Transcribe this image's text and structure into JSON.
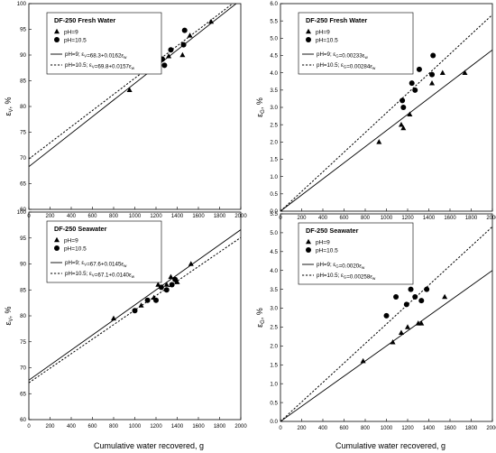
{
  "figure": {
    "xlabel": "Cumulative water recovered, g"
  },
  "chart_data": [
    {
      "type": "scatter",
      "id": "tl",
      "title": "DF-250 Fresh Water",
      "ylabel_sym": "ε",
      "ylabel_sub": "V",
      "ylabel_unit": ", %",
      "xlim": [
        0,
        2000
      ],
      "ylim": [
        60,
        100
      ],
      "xticks": [
        0,
        200,
        400,
        600,
        800,
        1000,
        1200,
        1400,
        1600,
        1800,
        2000
      ],
      "yticks": [
        60,
        65,
        70,
        75,
        80,
        85,
        90,
        95,
        100
      ],
      "legend_position": "top-left",
      "series": [
        {
          "name": "pH=9",
          "marker": "triangle",
          "points": [
            [
              950,
              83.2
            ],
            [
              1170,
              87.2
            ],
            [
              1220,
              89
            ],
            [
              1250,
              89.2
            ],
            [
              1320,
              89.8
            ],
            [
              1450,
              90
            ],
            [
              1520,
              93.8
            ],
            [
              1720,
              96.5
            ]
          ]
        },
        {
          "name": "pH=10.5",
          "marker": "circle",
          "points": [
            [
              1150,
              88.2
            ],
            [
              1160,
              89.4
            ],
            [
              1230,
              89.5
            ],
            [
              1260,
              89.2
            ],
            [
              1280,
              88
            ],
            [
              1340,
              91
            ],
            [
              1460,
              92
            ],
            [
              1470,
              94.8
            ]
          ]
        }
      ],
      "lines": [
        {
          "label": "pH=9; ε_V=68.3+0.0162ε_w",
          "intercept": 68.3,
          "slope": 0.0162,
          "dash": "solid"
        },
        {
          "label": "pH=10.5; ε_V=69.8+0.0157ε_w",
          "intercept": 69.8,
          "slope": 0.0157,
          "dash": "dotted"
        }
      ]
    },
    {
      "type": "scatter",
      "id": "tr",
      "title": "DF-250 Fresh Water",
      "ylabel_sym": "ε",
      "ylabel_sub": "G",
      "ylabel_unit": ", %",
      "xlim": [
        0,
        2000
      ],
      "ylim": [
        0,
        6
      ],
      "xticks": [
        0,
        200,
        400,
        600,
        800,
        1000,
        1200,
        1400,
        1600,
        1800,
        2000
      ],
      "yticks": [
        0.0,
        0.5,
        1.0,
        1.5,
        2.0,
        2.5,
        3.0,
        3.5,
        4.0,
        4.5,
        5.0,
        5.5,
        6.0
      ],
      "ytick_decimals": 1,
      "legend_position": "top-left",
      "series": [
        {
          "name": "pH=9",
          "marker": "triangle",
          "points": [
            [
              930,
              2.0
            ],
            [
              1140,
              2.5
            ],
            [
              1160,
              2.4
            ],
            [
              1220,
              2.8
            ],
            [
              1430,
              3.7
            ],
            [
              1530,
              4.0
            ],
            [
              1740,
              4.0
            ]
          ]
        },
        {
          "name": "pH=10.5",
          "marker": "circle",
          "points": [
            [
              1150,
              3.2
            ],
            [
              1160,
              3.0
            ],
            [
              1240,
              3.7
            ],
            [
              1270,
              3.5
            ],
            [
              1310,
              4.1
            ],
            [
              1430,
              3.95
            ],
            [
              1440,
              4.5
            ]
          ]
        }
      ],
      "lines": [
        {
          "label": "pH=9; ε_G=0.00233ε_w",
          "intercept": 0,
          "slope": 0.00233,
          "dash": "solid"
        },
        {
          "label": "pH=10.5; ε_G=0.00284ε_w",
          "intercept": 0,
          "slope": 0.00284,
          "dash": "dotted"
        }
      ]
    },
    {
      "type": "scatter",
      "id": "bl",
      "title": "DF-250 Seawater",
      "ylabel_sym": "ε",
      "ylabel_sub": "V",
      "ylabel_unit": ", %",
      "xlim": [
        0,
        2000
      ],
      "ylim": [
        60,
        100
      ],
      "xticks": [
        0,
        200,
        400,
        600,
        800,
        1000,
        1200,
        1400,
        1600,
        1800,
        2000
      ],
      "yticks": [
        60,
        65,
        70,
        75,
        80,
        85,
        90,
        95,
        100
      ],
      "legend_position": "top-left",
      "series": [
        {
          "name": "pH=9",
          "marker": "triangle",
          "points": [
            [
              800,
              79.5
            ],
            [
              1060,
              82
            ],
            [
              1180,
              83.5
            ],
            [
              1220,
              86
            ],
            [
              1300,
              86
            ],
            [
              1340,
              87.5
            ],
            [
              1400,
              86.5
            ],
            [
              1530,
              90
            ]
          ]
        },
        {
          "name": "pH=10.5",
          "marker": "circle",
          "points": [
            [
              1000,
              81
            ],
            [
              1120,
              83
            ],
            [
              1200,
              83
            ],
            [
              1250,
              85.5
            ],
            [
              1300,
              85
            ],
            [
              1350,
              86
            ],
            [
              1380,
              87
            ]
          ]
        }
      ],
      "lines": [
        {
          "label": "pH=9; ε_V=67.6+0.0145ε_w",
          "intercept": 67.6,
          "slope": 0.0145,
          "dash": "solid"
        },
        {
          "label": "pH=10.5; ε_V=67.1+0.0140ε_w",
          "intercept": 67.1,
          "slope": 0.014,
          "dash": "dotted"
        }
      ]
    },
    {
      "type": "scatter",
      "id": "br",
      "title": "DF-250 Seawater",
      "ylabel_sym": "ε",
      "ylabel_sub": "G",
      "ylabel_unit": ", %",
      "xlim": [
        0,
        2000
      ],
      "ylim": [
        0,
        5.5
      ],
      "xticks": [
        0,
        200,
        400,
        600,
        800,
        1000,
        1200,
        1400,
        1600,
        1800,
        2000
      ],
      "yticks": [
        0.0,
        0.5,
        1.0,
        1.5,
        2.0,
        2.5,
        3.0,
        3.5,
        4.0,
        4.5,
        5.0,
        5.5
      ],
      "ytick_decimals": 1,
      "legend_position": "top-left",
      "series": [
        {
          "name": "pH=9",
          "marker": "triangle",
          "points": [
            [
              780,
              1.6
            ],
            [
              1060,
              2.1
            ],
            [
              1140,
              2.35
            ],
            [
              1200,
              2.5
            ],
            [
              1300,
              2.6
            ],
            [
              1330,
              2.6
            ],
            [
              1550,
              3.3
            ]
          ]
        },
        {
          "name": "pH=10.5",
          "marker": "circle",
          "points": [
            [
              1000,
              2.8
            ],
            [
              1090,
              3.3
            ],
            [
              1190,
              3.1
            ],
            [
              1230,
              3.5
            ],
            [
              1270,
              3.3
            ],
            [
              1330,
              3.2
            ],
            [
              1380,
              3.5
            ]
          ]
        }
      ],
      "lines": [
        {
          "label": "pH=9; ε_G=0.0020ε_w",
          "intercept": 0,
          "slope": 0.002,
          "dash": "solid"
        },
        {
          "label": "pH=10.5; ε_G=0.00258ε_w",
          "intercept": 0,
          "slope": 0.00258,
          "dash": "dotted"
        }
      ]
    }
  ]
}
